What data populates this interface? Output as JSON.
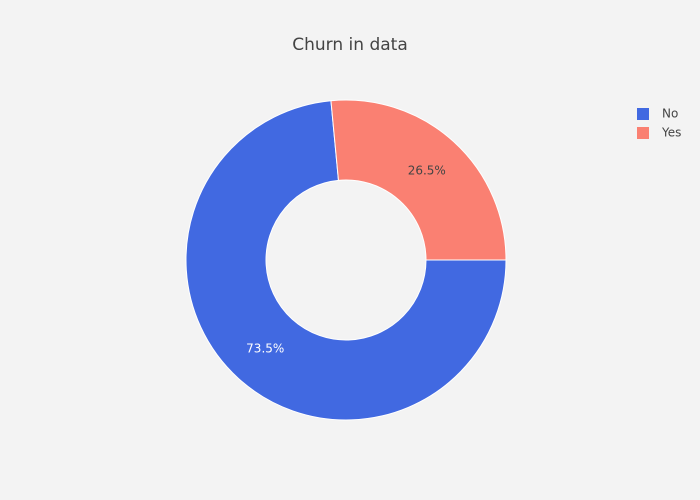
{
  "chart_data": {
    "type": "pie",
    "title": "Churn in data",
    "categories": [
      "No",
      "Yes"
    ],
    "values": [
      73.5,
      26.5
    ],
    "value_labels": [
      "73.5%",
      "26.5%"
    ],
    "colors": [
      "#4169e1",
      "#fa8072"
    ],
    "hole": 0.5,
    "legend": "top-right"
  }
}
